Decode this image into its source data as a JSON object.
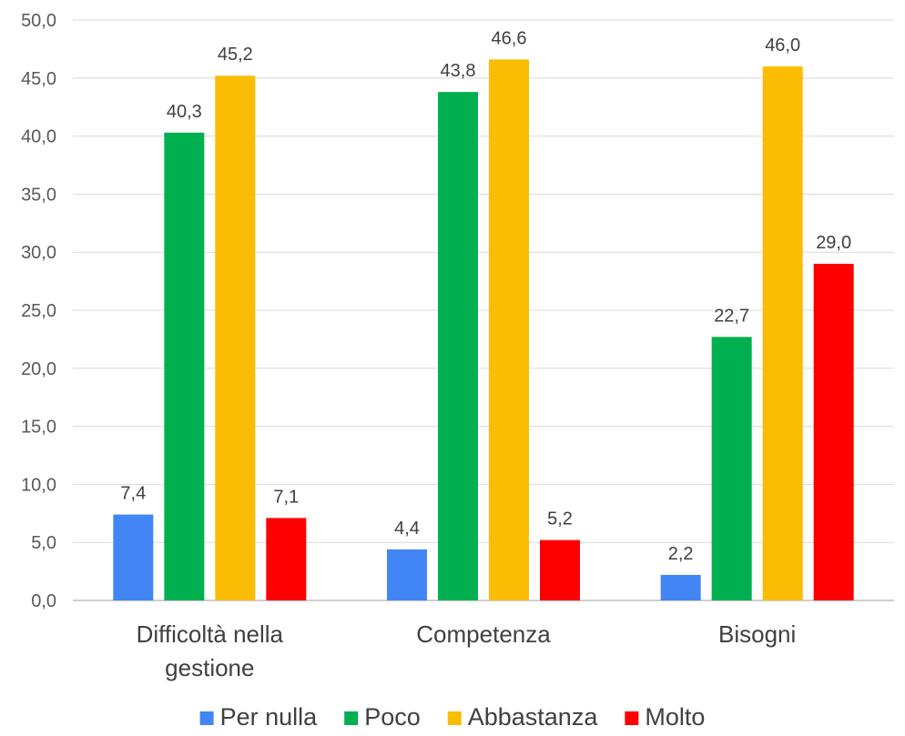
{
  "chart_data": {
    "type": "bar",
    "categories": [
      [
        "Difficoltà nella",
        "gestione"
      ],
      [
        "Competenza"
      ],
      [
        "Bisogni"
      ]
    ],
    "series": [
      {
        "name": "Per nulla",
        "color": "#4285F4",
        "values": [
          7.4,
          4.4,
          2.2
        ],
        "labels": [
          "7,4",
          "4,4",
          "2,2"
        ]
      },
      {
        "name": "Poco",
        "color": "#00B050",
        "values": [
          40.3,
          43.8,
          22.7
        ],
        "labels": [
          "40,3",
          "43,8",
          "22,7"
        ]
      },
      {
        "name": "Abbastanza",
        "color": "#FBBC04",
        "values": [
          45.2,
          46.6,
          46.0
        ],
        "labels": [
          "45,2",
          "46,6",
          "46,0"
        ]
      },
      {
        "name": "Molto",
        "color": "#FF0000",
        "values": [
          7.1,
          5.2,
          29.0
        ],
        "labels": [
          "7,1",
          "5,2",
          "29,0"
        ]
      }
    ],
    "y_ticks": [
      "0,0",
      "5,0",
      "10,0",
      "15,0",
      "20,0",
      "25,0",
      "30,0",
      "35,0",
      "40,0",
      "45,0",
      "50,0"
    ],
    "ylim": [
      0,
      50
    ],
    "grid": true,
    "legend_position": "bottom"
  }
}
